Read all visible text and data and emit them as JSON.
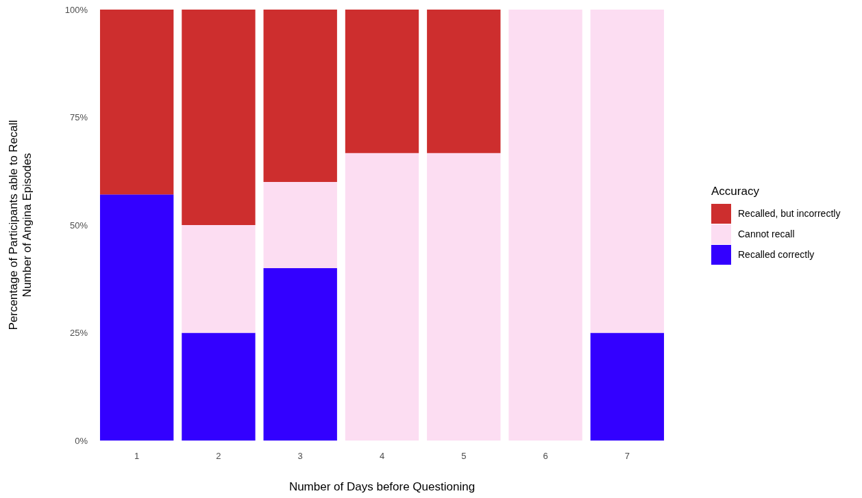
{
  "chart_data": {
    "type": "bar",
    "stacked": true,
    "xlabel": "Number of Days before Questioning",
    "ylabel": "Percentage of Participants able to Recall\nNumber of Angina Episodes",
    "legend_title": "Accuracy",
    "legend": "right",
    "categories": [
      "1",
      "2",
      "3",
      "4",
      "5",
      "6",
      "7"
    ],
    "series": [
      {
        "name": "Recalled correctly",
        "color": "#3300ff",
        "values": [
          57.1,
          25,
          40,
          0,
          0,
          0,
          25
        ]
      },
      {
        "name": "Cannot recall",
        "color": "#fcddf2",
        "values": [
          0,
          25,
          20,
          66.7,
          66.7,
          100,
          75
        ]
      },
      {
        "name": "Recalled, but incorrectly",
        "color": "#cd2e2e",
        "values": [
          42.9,
          50,
          40,
          33.3,
          33.3,
          0,
          0
        ]
      }
    ],
    "ylim": [
      0,
      100
    ],
    "yticks": [
      {
        "value": 0,
        "label": "0%"
      },
      {
        "value": 25,
        "label": "25%"
      },
      {
        "value": 50,
        "label": "50%"
      },
      {
        "value": 75,
        "label": "75%"
      },
      {
        "value": 100,
        "label": "100%"
      }
    ]
  }
}
